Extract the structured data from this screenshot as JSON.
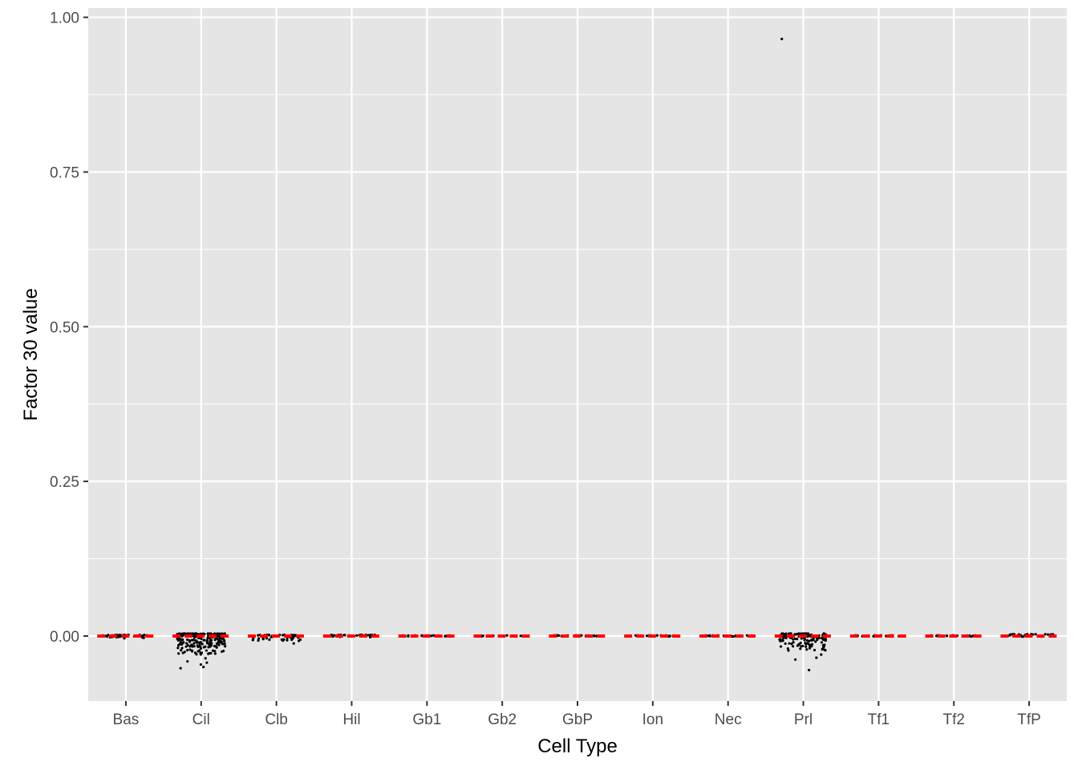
{
  "chart_data": {
    "type": "scatter",
    "title": "",
    "xlabel": "Cell Type",
    "ylabel": "Factor 30 value",
    "categories": [
      "Bas",
      "Cil",
      "Clb",
      "Hil",
      "Gb1",
      "Gb2",
      "GbP",
      "Ion",
      "Nec",
      "Prl",
      "Tf1",
      "Tf2",
      "TfP"
    ],
    "ylim": [
      -0.105,
      1.015
    ],
    "yticks": [
      0.0,
      0.25,
      0.5,
      0.75,
      1.0
    ],
    "ytick_labels": [
      "0.00",
      "0.25",
      "0.50",
      "0.75",
      "1.00"
    ],
    "grid": true,
    "reference_line": {
      "y": 0.0,
      "style": "dashed",
      "color": "#ff0000"
    },
    "point_color": "#000000",
    "panel_background": "#e5e5e5",
    "groups": [
      {
        "category": "Bas",
        "n_points": 40,
        "min": -0.004,
        "max": 0.002,
        "extreme_points": []
      },
      {
        "category": "Cil",
        "n_points": 220,
        "min": -0.03,
        "max": 0.004,
        "extreme_points": [
          -0.036,
          -0.041,
          -0.043,
          -0.046,
          -0.05,
          -0.052
        ]
      },
      {
        "category": "Clb",
        "n_points": 45,
        "min": -0.008,
        "max": 0.002,
        "extreme_points": [
          -0.012
        ]
      },
      {
        "category": "Hil",
        "n_points": 30,
        "min": -0.002,
        "max": 0.002,
        "extreme_points": []
      },
      {
        "category": "Gb1",
        "n_points": 25,
        "min": -0.001,
        "max": 0.001,
        "extreme_points": []
      },
      {
        "category": "Gb2",
        "n_points": 10,
        "min": -0.001,
        "max": 0.001,
        "extreme_points": []
      },
      {
        "category": "GbP",
        "n_points": 30,
        "min": -0.001,
        "max": 0.001,
        "extreme_points": []
      },
      {
        "category": "Ion",
        "n_points": 25,
        "min": -0.001,
        "max": 0.001,
        "extreme_points": []
      },
      {
        "category": "Nec",
        "n_points": 25,
        "min": -0.001,
        "max": 0.001,
        "extreme_points": []
      },
      {
        "category": "Prl",
        "n_points": 140,
        "min": -0.025,
        "max": 0.004,
        "extreme_points": [
          -0.03,
          -0.035,
          -0.038,
          -0.055,
          0.965
        ]
      },
      {
        "category": "Tf1",
        "n_points": 30,
        "min": -0.001,
        "max": 0.001,
        "extreme_points": []
      },
      {
        "category": "Tf2",
        "n_points": 25,
        "min": -0.001,
        "max": 0.001,
        "extreme_points": []
      },
      {
        "category": "TfP",
        "n_points": 25,
        "min": -0.001,
        "max": 0.003,
        "extreme_points": []
      }
    ]
  }
}
